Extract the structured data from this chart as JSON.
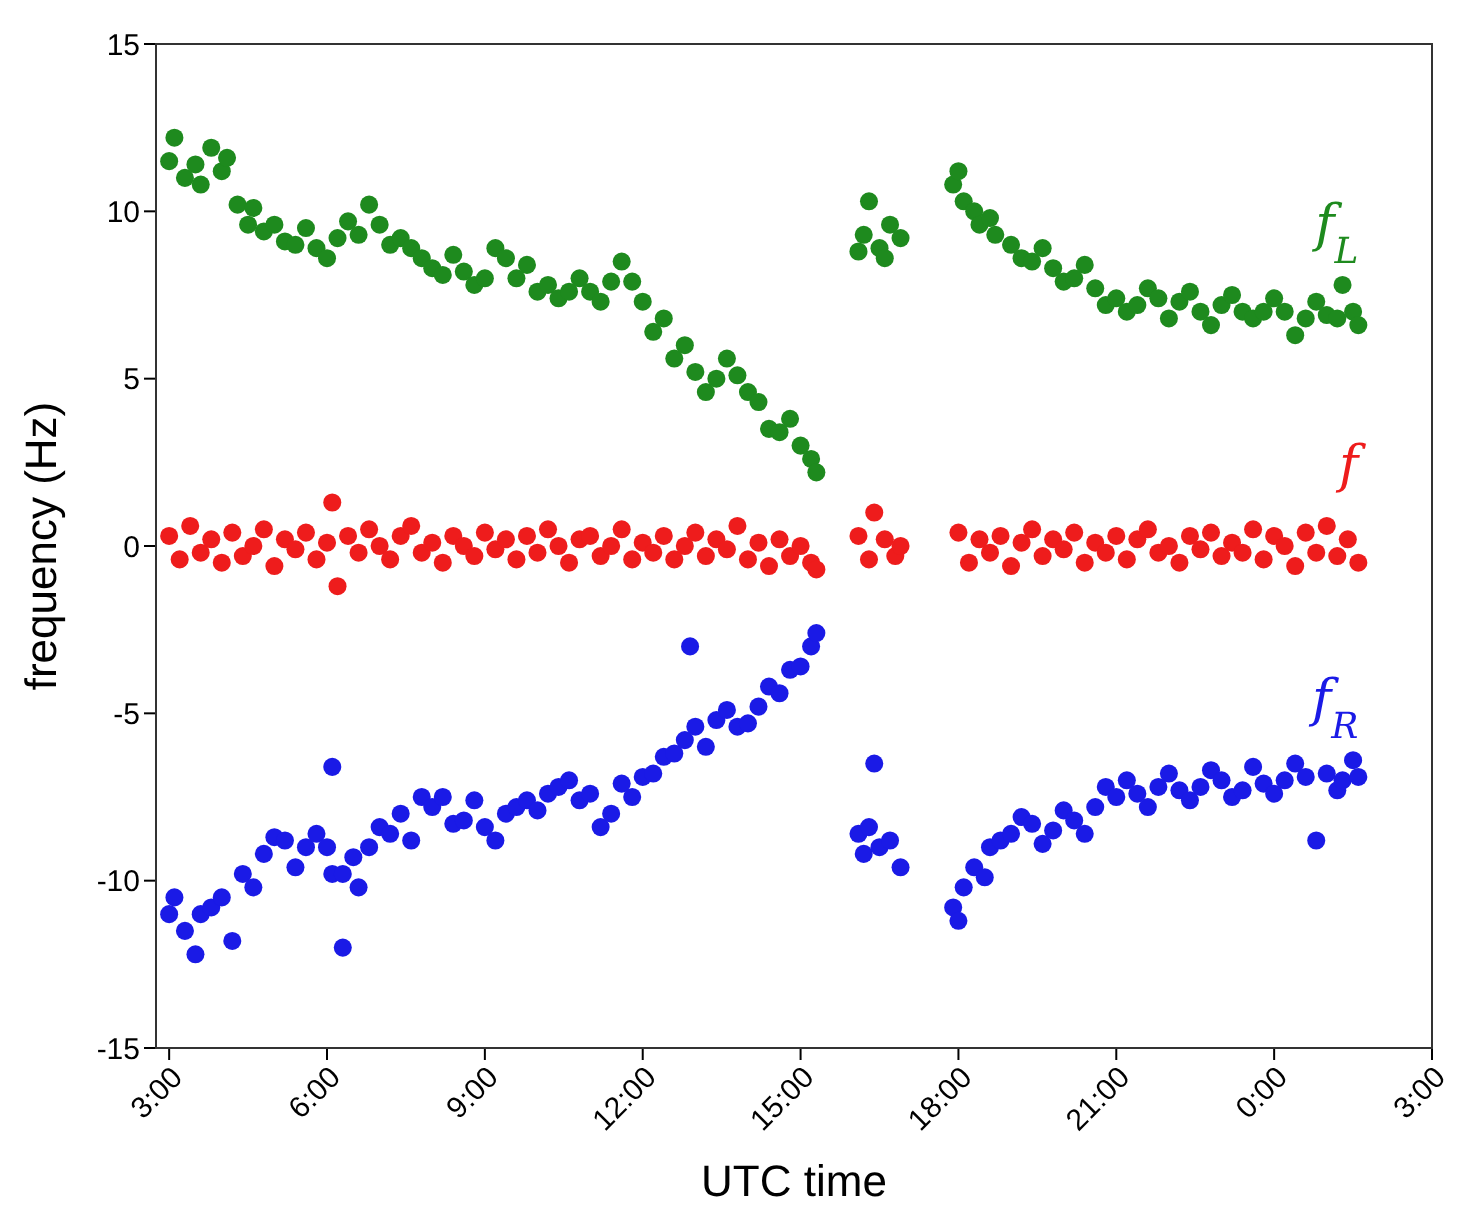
{
  "chart_data": {
    "type": "scatter",
    "xlabel": "UTC time",
    "ylabel": "frequency (Hz)",
    "xlim": [
      "2000-01-01T02:45",
      "2000-01-02T03:00"
    ],
    "xticks": [
      {
        "value": "2000-01-01T03:00",
        "label": "3:00"
      },
      {
        "value": "2000-01-01T06:00",
        "label": "6:00"
      },
      {
        "value": "2000-01-01T09:00",
        "label": "9:00"
      },
      {
        "value": "2000-01-01T12:00",
        "label": "12:00"
      },
      {
        "value": "2000-01-01T15:00",
        "label": "15:00"
      },
      {
        "value": "2000-01-01T18:00",
        "label": "18:00"
      },
      {
        "value": "2000-01-01T21:00",
        "label": "21:00"
      },
      {
        "value": "2000-01-02T00:00",
        "label": "0:00"
      },
      {
        "value": "2000-01-02T03:00",
        "label": "3:00"
      }
    ],
    "ylim": [
      -15,
      15
    ],
    "yticks": [
      -15,
      -10,
      -5,
      0,
      5,
      10,
      15
    ],
    "grid": false,
    "legend": false,
    "marker": "circle",
    "series": [
      {
        "name": "f$_{L}$",
        "color": "#1e8a1e",
        "x": [
          "2000-01-01T03:00",
          "2000-01-01T03:06",
          "2000-01-01T03:18",
          "2000-01-01T03:30",
          "2000-01-01T03:36",
          "2000-01-01T03:48",
          "2000-01-01T04:00",
          "2000-01-01T04:06",
          "2000-01-01T04:18",
          "2000-01-01T04:30",
          "2000-01-01T04:36",
          "2000-01-01T04:48",
          "2000-01-01T05:00",
          "2000-01-01T05:12",
          "2000-01-01T05:24",
          "2000-01-01T05:36",
          "2000-01-01T05:48",
          "2000-01-01T06:00",
          "2000-01-01T06:12",
          "2000-01-01T06:24",
          "2000-01-01T06:36",
          "2000-01-01T06:48",
          "2000-01-01T07:00",
          "2000-01-01T07:12",
          "2000-01-01T07:24",
          "2000-01-01T07:36",
          "2000-01-01T07:48",
          "2000-01-01T08:00",
          "2000-01-01T08:12",
          "2000-01-01T08:24",
          "2000-01-01T08:36",
          "2000-01-01T08:48",
          "2000-01-01T09:00",
          "2000-01-01T09:12",
          "2000-01-01T09:24",
          "2000-01-01T09:36",
          "2000-01-01T09:48",
          "2000-01-01T10:00",
          "2000-01-01T10:12",
          "2000-01-01T10:24",
          "2000-01-01T10:36",
          "2000-01-01T10:48",
          "2000-01-01T11:00",
          "2000-01-01T11:12",
          "2000-01-01T11:24",
          "2000-01-01T11:36",
          "2000-01-01T11:48",
          "2000-01-01T12:00",
          "2000-01-01T12:12",
          "2000-01-01T12:24",
          "2000-01-01T12:36",
          "2000-01-01T12:48",
          "2000-01-01T13:00",
          "2000-01-01T13:12",
          "2000-01-01T13:24",
          "2000-01-01T13:36",
          "2000-01-01T13:48",
          "2000-01-01T14:00",
          "2000-01-01T14:12",
          "2000-01-01T14:24",
          "2000-01-01T14:36",
          "2000-01-01T14:48",
          "2000-01-01T15:00",
          "2000-01-01T15:12",
          "2000-01-01T15:18",
          "2000-01-01T16:06",
          "2000-01-01T16:12",
          "2000-01-01T16:18",
          "2000-01-01T16:30",
          "2000-01-01T16:36",
          "2000-01-01T16:42",
          "2000-01-01T16:54",
          "2000-01-01T17:54",
          "2000-01-01T18:00",
          "2000-01-01T18:06",
          "2000-01-01T18:18",
          "2000-01-01T18:24",
          "2000-01-01T18:36",
          "2000-01-01T18:42",
          "2000-01-01T19:00",
          "2000-01-01T19:12",
          "2000-01-01T19:24",
          "2000-01-01T19:36",
          "2000-01-01T19:48",
          "2000-01-01T20:00",
          "2000-01-01T20:12",
          "2000-01-01T20:24",
          "2000-01-01T20:36",
          "2000-01-01T20:48",
          "2000-01-01T21:00",
          "2000-01-01T21:12",
          "2000-01-01T21:24",
          "2000-01-01T21:36",
          "2000-01-01T21:48",
          "2000-01-01T22:00",
          "2000-01-01T22:12",
          "2000-01-01T22:24",
          "2000-01-01T22:36",
          "2000-01-01T22:48",
          "2000-01-01T23:00",
          "2000-01-01T23:12",
          "2000-01-01T23:24",
          "2000-01-01T23:36",
          "2000-01-01T23:48",
          "2000-01-02T00:00",
          "2000-01-02T00:12",
          "2000-01-02T00:24",
          "2000-01-02T00:36",
          "2000-01-02T00:48",
          "2000-01-02T01:00",
          "2000-01-02T01:12",
          "2000-01-02T01:18",
          "2000-01-02T01:30",
          "2000-01-02T01:36"
        ],
        "values": [
          11.5,
          12.2,
          11.0,
          11.4,
          10.8,
          11.9,
          11.2,
          11.6,
          10.2,
          9.6,
          10.1,
          9.4,
          9.6,
          9.1,
          9.0,
          9.5,
          8.9,
          8.6,
          9.2,
          9.7,
          9.3,
          10.2,
          9.6,
          9.0,
          9.2,
          8.9,
          8.6,
          8.3,
          8.1,
          8.7,
          8.2,
          7.8,
          8.0,
          8.9,
          8.6,
          8.0,
          8.4,
          7.6,
          7.8,
          7.4,
          7.6,
          8.0,
          7.6,
          7.3,
          7.9,
          8.5,
          7.9,
          7.3,
          6.4,
          6.8,
          5.6,
          6.0,
          5.2,
          4.6,
          5.0,
          5.6,
          5.1,
          4.6,
          4.3,
          3.5,
          3.4,
          3.8,
          3.0,
          2.6,
          2.2,
          8.8,
          9.3,
          10.3,
          8.9,
          8.6,
          9.6,
          9.2,
          10.8,
          11.2,
          10.3,
          10.0,
          9.6,
          9.8,
          9.3,
          9.0,
          8.6,
          8.5,
          8.9,
          8.3,
          7.9,
          8.0,
          8.4,
          7.7,
          7.2,
          7.4,
          7.0,
          7.2,
          7.7,
          7.4,
          6.8,
          7.3,
          7.6,
          7.0,
          6.6,
          7.2,
          7.5,
          7.0,
          6.8,
          7.0,
          7.4,
          7.0,
          6.3,
          6.8,
          7.3,
          6.9,
          6.8,
          7.8,
          7.0,
          6.6
        ]
      },
      {
        "name": "f",
        "color": "#ee1c1c",
        "x": [
          "2000-01-01T03:00",
          "2000-01-01T03:12",
          "2000-01-01T03:24",
          "2000-01-01T03:36",
          "2000-01-01T03:48",
          "2000-01-01T04:00",
          "2000-01-01T04:12",
          "2000-01-01T04:24",
          "2000-01-01T04:36",
          "2000-01-01T04:48",
          "2000-01-01T05:00",
          "2000-01-01T05:12",
          "2000-01-01T05:24",
          "2000-01-01T05:36",
          "2000-01-01T05:48",
          "2000-01-01T06:00",
          "2000-01-01T06:06",
          "2000-01-01T06:12",
          "2000-01-01T06:24",
          "2000-01-01T06:36",
          "2000-01-01T06:48",
          "2000-01-01T07:00",
          "2000-01-01T07:12",
          "2000-01-01T07:24",
          "2000-01-01T07:36",
          "2000-01-01T07:48",
          "2000-01-01T08:00",
          "2000-01-01T08:12",
          "2000-01-01T08:24",
          "2000-01-01T08:36",
          "2000-01-01T08:48",
          "2000-01-01T09:00",
          "2000-01-01T09:12",
          "2000-01-01T09:24",
          "2000-01-01T09:36",
          "2000-01-01T09:48",
          "2000-01-01T10:00",
          "2000-01-01T10:12",
          "2000-01-01T10:24",
          "2000-01-01T10:36",
          "2000-01-01T10:48",
          "2000-01-01T11:00",
          "2000-01-01T11:12",
          "2000-01-01T11:24",
          "2000-01-01T11:36",
          "2000-01-01T11:48",
          "2000-01-01T12:00",
          "2000-01-01T12:12",
          "2000-01-01T12:24",
          "2000-01-01T12:36",
          "2000-01-01T12:48",
          "2000-01-01T13:00",
          "2000-01-01T13:12",
          "2000-01-01T13:24",
          "2000-01-01T13:36",
          "2000-01-01T13:48",
          "2000-01-01T14:00",
          "2000-01-01T14:12",
          "2000-01-01T14:24",
          "2000-01-01T14:36",
          "2000-01-01T14:48",
          "2000-01-01T15:00",
          "2000-01-01T15:12",
          "2000-01-01T15:18",
          "2000-01-01T16:06",
          "2000-01-01T16:18",
          "2000-01-01T16:24",
          "2000-01-01T16:36",
          "2000-01-01T16:48",
          "2000-01-01T16:54",
          "2000-01-01T18:00",
          "2000-01-01T18:12",
          "2000-01-01T18:24",
          "2000-01-01T18:36",
          "2000-01-01T18:48",
          "2000-01-01T19:00",
          "2000-01-01T19:12",
          "2000-01-01T19:24",
          "2000-01-01T19:36",
          "2000-01-01T19:48",
          "2000-01-01T20:00",
          "2000-01-01T20:12",
          "2000-01-01T20:24",
          "2000-01-01T20:36",
          "2000-01-01T20:48",
          "2000-01-01T21:00",
          "2000-01-01T21:12",
          "2000-01-01T21:24",
          "2000-01-01T21:36",
          "2000-01-01T21:48",
          "2000-01-01T22:00",
          "2000-01-01T22:12",
          "2000-01-01T22:24",
          "2000-01-01T22:36",
          "2000-01-01T22:48",
          "2000-01-01T23:00",
          "2000-01-01T23:12",
          "2000-01-01T23:24",
          "2000-01-01T23:36",
          "2000-01-01T23:48",
          "2000-01-02T00:00",
          "2000-01-02T00:12",
          "2000-01-02T00:24",
          "2000-01-02T00:36",
          "2000-01-02T00:48",
          "2000-01-02T01:00",
          "2000-01-02T01:12",
          "2000-01-02T01:24",
          "2000-01-02T01:36"
        ],
        "values": [
          0.3,
          -0.4,
          0.6,
          -0.2,
          0.2,
          -0.5,
          0.4,
          -0.3,
          0.0,
          0.5,
          -0.6,
          0.2,
          -0.1,
          0.4,
          -0.4,
          0.1,
          1.3,
          -1.2,
          0.3,
          -0.2,
          0.5,
          0.0,
          -0.4,
          0.3,
          0.6,
          -0.2,
          0.1,
          -0.5,
          0.3,
          0.0,
          -0.3,
          0.4,
          -0.1,
          0.2,
          -0.4,
          0.3,
          -0.2,
          0.5,
          0.0,
          -0.5,
          0.2,
          0.3,
          -0.3,
          0.0,
          0.5,
          -0.4,
          0.1,
          -0.2,
          0.3,
          -0.4,
          0.0,
          0.4,
          -0.3,
          0.2,
          -0.1,
          0.6,
          -0.4,
          0.1,
          -0.6,
          0.2,
          -0.3,
          0.0,
          -0.5,
          -0.7,
          0.3,
          -0.4,
          1.0,
          0.2,
          -0.3,
          0.0,
          0.4,
          -0.5,
          0.2,
          -0.2,
          0.3,
          -0.6,
          0.1,
          0.5,
          -0.3,
          0.2,
          -0.1,
          0.4,
          -0.5,
          0.1,
          -0.2,
          0.3,
          -0.4,
          0.2,
          0.5,
          -0.2,
          0.0,
          -0.5,
          0.3,
          -0.1,
          0.4,
          -0.3,
          0.1,
          -0.2,
          0.5,
          -0.4,
          0.3,
          0.0,
          -0.6,
          0.4,
          -0.2,
          0.6,
          -0.3,
          0.2,
          -0.5
        ]
      },
      {
        "name": "f$_{R}$",
        "color": "#1a1ae6",
        "x": [
          "2000-01-01T03:00",
          "2000-01-01T03:06",
          "2000-01-01T03:18",
          "2000-01-01T03:30",
          "2000-01-01T03:36",
          "2000-01-01T03:48",
          "2000-01-01T04:00",
          "2000-01-01T04:12",
          "2000-01-01T04:24",
          "2000-01-01T04:36",
          "2000-01-01T04:48",
          "2000-01-01T05:00",
          "2000-01-01T05:12",
          "2000-01-01T05:24",
          "2000-01-01T05:36",
          "2000-01-01T05:48",
          "2000-01-01T06:00",
          "2000-01-01T06:06",
          "2000-01-01T06:06",
          "2000-01-01T06:18",
          "2000-01-01T06:18",
          "2000-01-01T06:30",
          "2000-01-01T06:36",
          "2000-01-01T06:48",
          "2000-01-01T07:00",
          "2000-01-01T07:12",
          "2000-01-01T07:24",
          "2000-01-01T07:36",
          "2000-01-01T07:48",
          "2000-01-01T08:00",
          "2000-01-01T08:12",
          "2000-01-01T08:24",
          "2000-01-01T08:36",
          "2000-01-01T08:48",
          "2000-01-01T09:00",
          "2000-01-01T09:12",
          "2000-01-01T09:24",
          "2000-01-01T09:36",
          "2000-01-01T09:48",
          "2000-01-01T10:00",
          "2000-01-01T10:12",
          "2000-01-01T10:24",
          "2000-01-01T10:36",
          "2000-01-01T10:48",
          "2000-01-01T11:00",
          "2000-01-01T11:12",
          "2000-01-01T11:24",
          "2000-01-01T11:36",
          "2000-01-01T11:48",
          "2000-01-01T12:00",
          "2000-01-01T12:12",
          "2000-01-01T12:24",
          "2000-01-01T12:36",
          "2000-01-01T12:48",
          "2000-01-01T12:54",
          "2000-01-01T13:00",
          "2000-01-01T13:12",
          "2000-01-01T13:24",
          "2000-01-01T13:36",
          "2000-01-01T13:48",
          "2000-01-01T14:00",
          "2000-01-01T14:12",
          "2000-01-01T14:24",
          "2000-01-01T14:36",
          "2000-01-01T14:48",
          "2000-01-01T15:00",
          "2000-01-01T15:12",
          "2000-01-01T15:18",
          "2000-01-01T16:06",
          "2000-01-01T16:12",
          "2000-01-01T16:18",
          "2000-01-01T16:24",
          "2000-01-01T16:30",
          "2000-01-01T16:42",
          "2000-01-01T16:54",
          "2000-01-01T17:54",
          "2000-01-01T18:00",
          "2000-01-01T18:06",
          "2000-01-01T18:18",
          "2000-01-01T18:30",
          "2000-01-01T18:36",
          "2000-01-01T18:48",
          "2000-01-01T19:00",
          "2000-01-01T19:12",
          "2000-01-01T19:24",
          "2000-01-01T19:36",
          "2000-01-01T19:48",
          "2000-01-01T20:00",
          "2000-01-01T20:12",
          "2000-01-01T20:24",
          "2000-01-01T20:36",
          "2000-01-01T20:48",
          "2000-01-01T21:00",
          "2000-01-01T21:12",
          "2000-01-01T21:24",
          "2000-01-01T21:36",
          "2000-01-01T21:48",
          "2000-01-01T22:00",
          "2000-01-01T22:12",
          "2000-01-01T22:24",
          "2000-01-01T22:36",
          "2000-01-01T22:48",
          "2000-01-01T23:00",
          "2000-01-01T23:12",
          "2000-01-01T23:24",
          "2000-01-01T23:36",
          "2000-01-01T23:48",
          "2000-01-02T00:00",
          "2000-01-02T00:12",
          "2000-01-02T00:24",
          "2000-01-02T00:36",
          "2000-01-02T00:48",
          "2000-01-02T01:00",
          "2000-01-02T01:12",
          "2000-01-02T01:18",
          "2000-01-02T01:30",
          "2000-01-02T01:36"
        ],
        "values": [
          -11.0,
          -10.5,
          -11.5,
          -12.2,
          -11.0,
          -10.8,
          -10.5,
          -11.8,
          -9.8,
          -10.2,
          -9.2,
          -8.7,
          -8.8,
          -9.6,
          -9.0,
          -8.6,
          -9.0,
          -6.6,
          -9.8,
          -12.0,
          -9.8,
          -9.3,
          -10.2,
          -9.0,
          -8.4,
          -8.6,
          -8.0,
          -8.8,
          -7.5,
          -7.8,
          -7.5,
          -8.3,
          -8.2,
          -7.6,
          -8.4,
          -8.8,
          -8.0,
          -7.8,
          -7.6,
          -7.9,
          -7.4,
          -7.2,
          -7.0,
          -7.6,
          -7.4,
          -8.4,
          -8.0,
          -7.1,
          -7.5,
          -6.9,
          -6.8,
          -6.3,
          -6.2,
          -5.8,
          -3.0,
          -5.4,
          -6.0,
          -5.2,
          -4.9,
          -5.4,
          -5.3,
          -4.8,
          -4.2,
          -4.4,
          -3.7,
          -3.6,
          -3.0,
          -2.6,
          -8.6,
          -9.2,
          -8.4,
          -6.5,
          -9.0,
          -8.8,
          -9.6,
          -10.8,
          -11.2,
          -10.2,
          -9.6,
          -9.9,
          -9.0,
          -8.8,
          -8.6,
          -8.1,
          -8.3,
          -8.9,
          -8.5,
          -7.9,
          -8.2,
          -8.6,
          -7.8,
          -7.2,
          -7.5,
          -7.0,
          -7.4,
          -7.8,
          -7.2,
          -6.8,
          -7.3,
          -7.6,
          -7.2,
          -6.7,
          -7.0,
          -7.5,
          -7.3,
          -6.6,
          -7.1,
          -7.4,
          -7.0,
          -6.5,
          -6.9,
          -8.8,
          -6.8,
          -7.3,
          -7.0,
          -6.4,
          -6.9
        ]
      }
    ]
  }
}
